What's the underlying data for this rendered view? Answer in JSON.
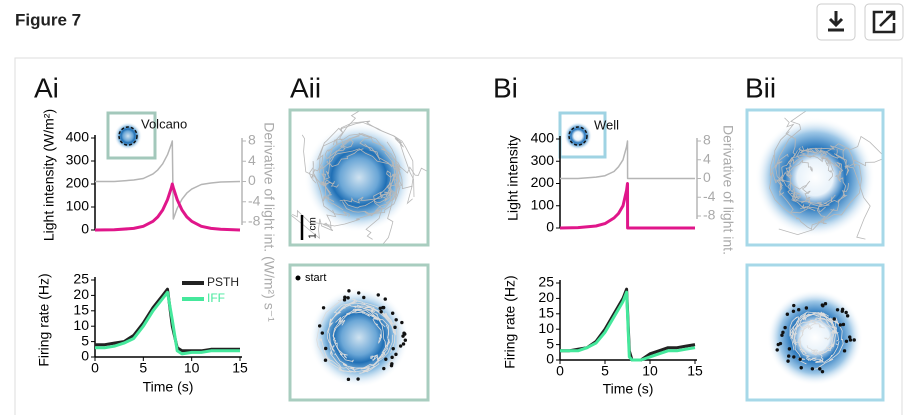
{
  "header": {
    "title": "Figure 7"
  },
  "figure": {
    "panel_labels": [
      "Ai",
      "Aii",
      "Bi",
      "Bii"
    ],
    "insets": [
      "Volcano",
      "Well"
    ],
    "scale_bar": "1 cm",
    "start_label": "start",
    "charts": [
      {
        "type": "line",
        "ylabel": "Light intensity (W/m²)",
        "y2label": "Derivative of light int. (W/m²) s⁻¹",
        "xlim": [
          0,
          15
        ],
        "ylim": [
          0,
          400
        ],
        "yticks": [
          0,
          100,
          200,
          300,
          400
        ],
        "y2lim": [
          -8,
          8
        ],
        "y2ticks": [
          8,
          4,
          0,
          -4,
          -8
        ],
        "x": [
          0,
          2,
          4,
          5,
          6,
          6.5,
          7,
          7.5,
          7.9,
          8,
          8.1,
          8.5,
          9,
          9.5,
          10,
          11,
          12,
          13,
          15
        ],
        "series": [
          {
            "color": "#b5b5b5",
            "axis": "y2",
            "values": [
              0,
              0,
              0.3,
              0.6,
              1.5,
              2.3,
              3.5,
              5.3,
              7.4,
              8,
              -7.4,
              -5.3,
              -3.5,
              -2.3,
              -1.5,
              -0.6,
              -0.3,
              -0.1,
              0
            ]
          },
          {
            "color": "#e0168a",
            "values": [
              0,
              1,
              7,
              16,
              38,
              57,
              87,
              132,
              184,
              200,
              184,
              132,
              87,
              57,
              38,
              16,
              7,
              3,
              0
            ]
          }
        ]
      },
      {
        "type": "line",
        "ylabel": "Firing rate (Hz)",
        "xlabel": "Time (s)",
        "xlim": [
          0,
          15
        ],
        "xticks": [
          0,
          5,
          10,
          15
        ],
        "ylim": [
          0,
          25
        ],
        "yticks": [
          0,
          5,
          10,
          15,
          20,
          25
        ],
        "legend": "upper right",
        "x": [
          0,
          1,
          2,
          3,
          4,
          5,
          6,
          7,
          7.5,
          8,
          8.5,
          9,
          10,
          11,
          12,
          13,
          14,
          15
        ],
        "series": [
          {
            "name": "PSTH",
            "color": "#222222",
            "values": [
              4,
              4,
              4.5,
              5,
              7,
              11,
              16,
              20,
              22,
              10,
              3,
              2,
              2,
              2,
              2.5,
              2.5,
              2.5,
              2.5
            ]
          },
          {
            "name": "IFF",
            "color": "#45e89c",
            "values": [
              3,
              3,
              3.5,
              4.5,
              6,
              10,
              15,
              19,
              21,
              12,
              2,
              1,
              1.5,
              1.5,
              2,
              2,
              2,
              2
            ]
          }
        ]
      },
      {
        "type": "line",
        "ylabel": "Light intensity",
        "y2label": "Derivative of light int.",
        "xlim": [
          0,
          15
        ],
        "ylim": [
          0,
          400
        ],
        "yticks": [
          0,
          100,
          200,
          300,
          400
        ],
        "y2lim": [
          -8,
          8
        ],
        "y2ticks": [
          8,
          4,
          0,
          -4,
          -8
        ],
        "x": [
          0,
          2,
          4,
          5,
          6,
          6.5,
          7,
          7.4,
          7.5,
          7.51,
          9,
          12,
          15
        ],
        "series": [
          {
            "color": "#b5b5b5",
            "axis": "y2",
            "values": [
              0,
              0,
              0.3,
              0.6,
              1.5,
              2.5,
              4,
              6.8,
              8,
              0,
              0,
              0,
              0
            ]
          },
          {
            "color": "#e0168a",
            "values": [
              0,
              2,
              9,
              20,
              45,
              65,
              100,
              170,
              200,
              0,
              0,
              0,
              0
            ]
          }
        ]
      },
      {
        "type": "line",
        "ylabel": "Firing rate (Hz)",
        "xlabel": "Time (s)",
        "xlim": [
          0,
          15
        ],
        "xticks": [
          0,
          5,
          10,
          15
        ],
        "ylim": [
          0,
          25
        ],
        "yticks": [
          0,
          5,
          10,
          15,
          20,
          25
        ],
        "x": [
          0,
          1,
          2,
          3,
          4,
          5,
          6,
          7,
          7.4,
          7.7,
          8,
          9,
          10,
          11,
          12,
          13,
          14,
          15
        ],
        "series": [
          {
            "color": "#222222",
            "values": [
              3,
              3,
              3.5,
              4,
              6,
              10,
              15,
              20,
              23,
              3,
              0,
              0,
              2,
              3,
              4,
              4,
              4.5,
              5
            ]
          },
          {
            "color": "#45e89c",
            "values": [
              3,
              3,
              3,
              4,
              5.5,
              9,
              14,
              19,
              22,
              1,
              0,
              0,
              1,
              2,
              3,
              3,
              3.5,
              4
            ]
          }
        ]
      }
    ]
  }
}
